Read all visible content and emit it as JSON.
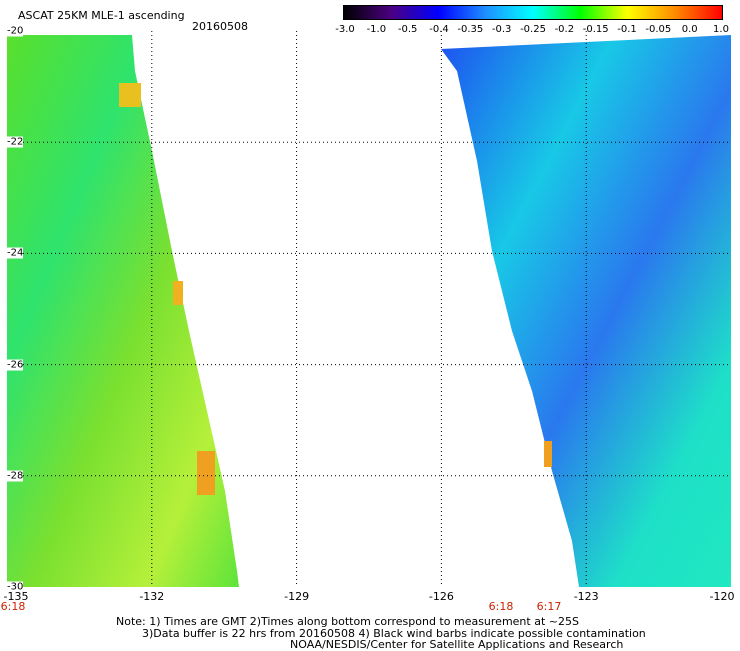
{
  "header": {
    "title": "ASCAT 25KM MLE-1 ascending",
    "date": "20160508"
  },
  "colorbar": {
    "labels": [
      "-3.0",
      "-1.0",
      "-0.5",
      "-0.4",
      "-0.35",
      "-0.3",
      "-0.25",
      "-0.2",
      "-0.15",
      "-0.1",
      "-0.05",
      "0.0",
      "1.0"
    ],
    "colors": [
      "#000000",
      "#4b0082",
      "#0000ff",
      "#1e90ff",
      "#00ffff",
      "#00ff00",
      "#ffff00",
      "#ff8c00",
      "#ff0000"
    ]
  },
  "map": {
    "lat_ticks": [
      "-20",
      "-22",
      "-24",
      "-26",
      "-28",
      "-30"
    ],
    "lon_ticks": [
      "-135",
      "-132",
      "-129",
      "-126",
      "-123",
      "-120"
    ],
    "lat_range": [
      -30,
      -20
    ],
    "lon_range": [
      -135,
      -120
    ],
    "grid": true,
    "time_labels": [
      "6:18",
      "6:18",
      "6:17"
    ],
    "swath_colors": {
      "west": "green-yellow (approx -0.2 to -0.05)",
      "east": "blue-cyan (approx -0.4 to -0.25)"
    }
  },
  "notes": {
    "line1": "Note: 1) Times are GMT 2)Times along bottom correspond to measurement at ~25S",
    "line2": "3)Data buffer is 22 hrs from 20160508 4) Black wind barbs indicate possible contamination",
    "line3": "NOAA/NESDIS/Center for Satellite Applications and Research"
  }
}
